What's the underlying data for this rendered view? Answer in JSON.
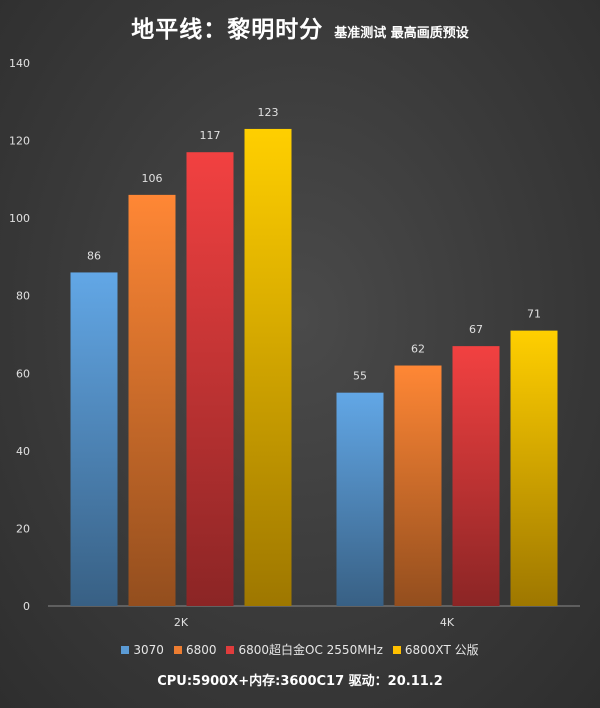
{
  "title": "地平线：黎明时分",
  "subtitle": "基准测试 最高画质预设",
  "footer": "CPU:5900X+内存:3600C17 驱动：20.11.2",
  "chart_data": {
    "type": "bar",
    "categories": [
      "2K",
      "4K"
    ],
    "series": [
      {
        "name": "3070",
        "values": [
          86,
          55
        ],
        "color": "#5b9bd5"
      },
      {
        "name": "6800",
        "values": [
          106,
          62
        ],
        "color": "#ed7d31"
      },
      {
        "name": "6800超白金OC 2550MHz",
        "values": [
          117,
          67
        ],
        "color": "#e03c3c"
      },
      {
        "name": "6800XT 公版",
        "values": [
          123,
          71
        ],
        "color": "#ffc000"
      }
    ],
    "ylim": [
      0,
      140
    ],
    "yticks": [
      0,
      20,
      40,
      60,
      80,
      100,
      120,
      140
    ],
    "grid": false,
    "legend": "bottom"
  }
}
